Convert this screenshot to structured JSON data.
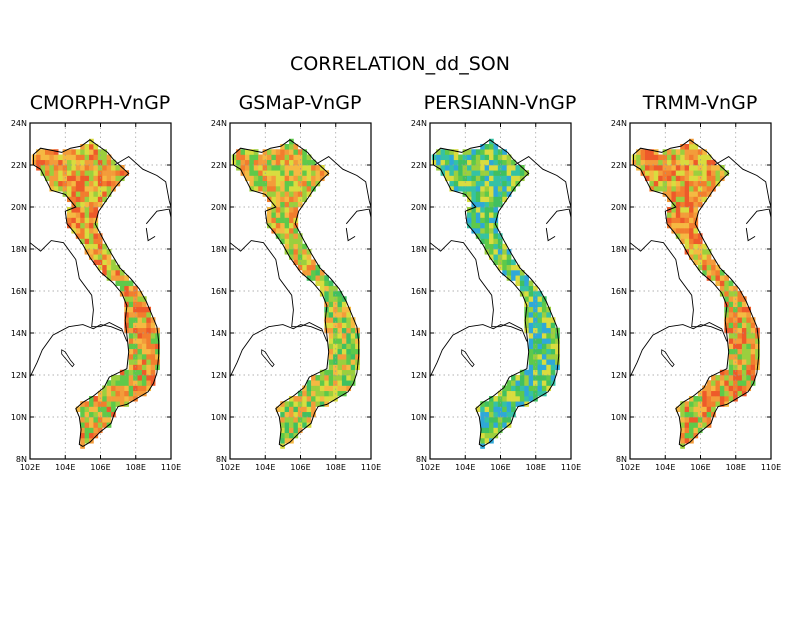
{
  "figure": {
    "title": "CORRELATION_dd_SON"
  },
  "panels": [
    {
      "label": "CMORPH-VnGP",
      "palette": {
        "n": [
          "#f5b942",
          "#f39c3a",
          "#f27d2e",
          "#ee5a2a",
          "#9bcf3e",
          "#d9dc3f"
        ],
        "s": [
          "#ee5a2a",
          "#f27d2e",
          "#f39c3a",
          "#9bcf3e",
          "#5ec94a",
          "#f5b942"
        ]
      }
    },
    {
      "label": "GSMaP-VnGP",
      "palette": {
        "n": [
          "#f5b942",
          "#9bcf3e",
          "#f39c3a",
          "#d9dc3f",
          "#5ec94a",
          "#f27d2e"
        ],
        "s": [
          "#f5b942",
          "#f39c3a",
          "#9bcf3e",
          "#5ec94a",
          "#d9dc3f",
          "#40c060"
        ]
      }
    },
    {
      "label": "PERSIANN-VnGP",
      "palette": {
        "n": [
          "#5ec94a",
          "#40c060",
          "#9bcf3e",
          "#35c2a4",
          "#d9dc3f",
          "#2fa8d8"
        ],
        "s": [
          "#40c060",
          "#5ec94a",
          "#35c2a4",
          "#9bcf3e",
          "#2fa8d8",
          "#d9dc3f"
        ]
      }
    },
    {
      "label": "TRMM-VnGP",
      "palette": {
        "n": [
          "#f39c3a",
          "#f27d2e",
          "#f5b942",
          "#9bcf3e",
          "#ee5a2a",
          "#d9dc3f"
        ],
        "s": [
          "#f27d2e",
          "#f39c3a",
          "#f5b942",
          "#5ec94a",
          "#9bcf3e",
          "#ee5a2a"
        ]
      }
    }
  ],
  "axes": {
    "lon_min": 102,
    "lon_max": 110,
    "lat_min": 8,
    "lat_max": 24,
    "x_ticks": [
      "102E",
      "104E",
      "106E",
      "108E",
      "110E"
    ],
    "y_ticks": [
      "24N",
      "22N",
      "20N",
      "18N",
      "16N",
      "14N",
      "12N",
      "10N",
      "8N"
    ],
    "grid": "dotted"
  },
  "colors": {
    "land_outline": "#000000",
    "grid": "#999999"
  }
}
